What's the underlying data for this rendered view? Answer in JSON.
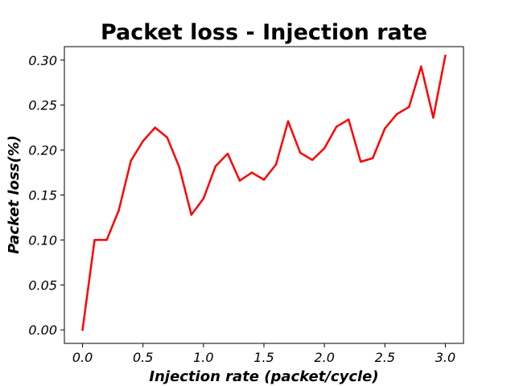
{
  "chart_data": {
    "type": "line",
    "title": "Packet loss - Injection rate",
    "xlabel": "Injection rate (packet/cycle)",
    "ylabel": "Packet loss(%)",
    "xlim": [
      -0.15,
      3.15
    ],
    "ylim": [
      -0.015,
      0.315
    ],
    "xticks": [
      0.0,
      0.5,
      1.0,
      1.5,
      2.0,
      2.5,
      3.0
    ],
    "xtick_labels": [
      "0.0",
      "0.5",
      "1.0",
      "1.5",
      "2.0",
      "2.5",
      "3.0"
    ],
    "yticks": [
      0.0,
      0.05,
      0.1,
      0.15,
      0.2,
      0.25,
      0.3
    ],
    "ytick_labels": [
      "0.00",
      "0.05",
      "0.10",
      "0.15",
      "0.20",
      "0.25",
      "0.30"
    ],
    "grid": false,
    "series": [
      {
        "color": "#ff0000",
        "x": [
          0.0,
          0.1,
          0.2,
          0.3,
          0.4,
          0.5,
          0.6,
          0.7,
          0.8,
          0.9,
          1.0,
          1.1,
          1.2,
          1.3,
          1.4,
          1.5,
          1.6,
          1.7,
          1.8,
          1.9,
          2.0,
          2.1,
          2.2,
          2.3,
          2.4,
          2.5,
          2.6,
          2.7,
          2.8,
          2.9,
          3.0
        ],
        "y": [
          0.0,
          0.1,
          0.1,
          0.133,
          0.188,
          0.21,
          0.225,
          0.214,
          0.181,
          0.128,
          0.146,
          0.182,
          0.196,
          0.166,
          0.175,
          0.167,
          0.184,
          0.232,
          0.197,
          0.189,
          0.202,
          0.226,
          0.234,
          0.187,
          0.191,
          0.224,
          0.24,
          0.248,
          0.293,
          0.236,
          0.305
        ]
      }
    ]
  }
}
